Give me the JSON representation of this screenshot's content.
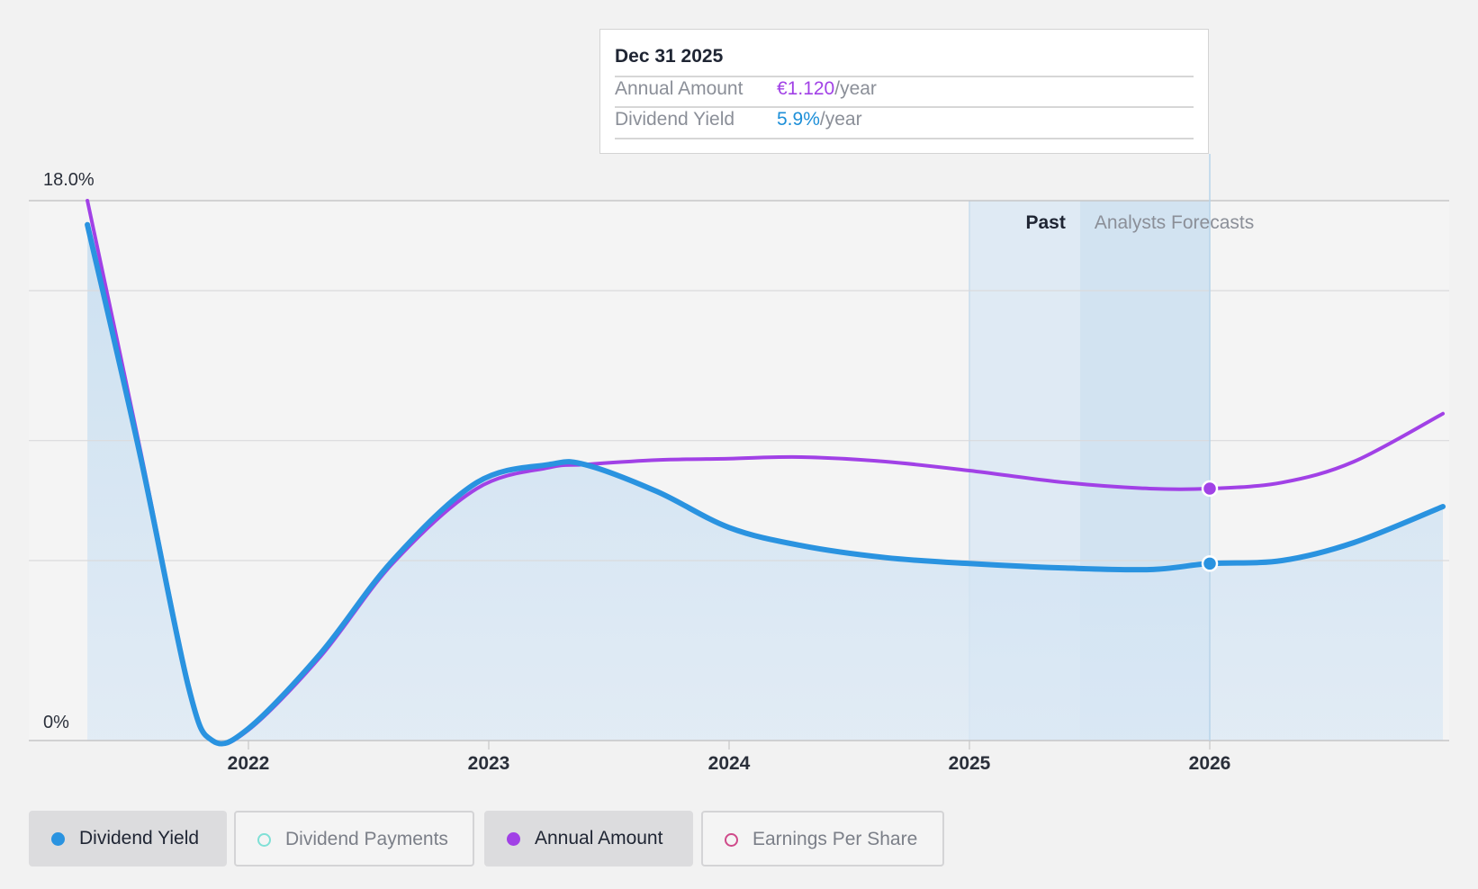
{
  "tooltip": {
    "date": "Dec 31 2025",
    "rows": [
      {
        "label": "Annual Amount",
        "value": "€1.120",
        "unit": "/year",
        "color": "#a141e6"
      },
      {
        "label": "Dividend Yield",
        "value": "5.9%",
        "unit": "/year",
        "color": "#1d8fd8"
      }
    ]
  },
  "regions": {
    "past_label": "Past",
    "forecast_label": "Analysts Forecasts"
  },
  "legend": [
    {
      "label": "Dividend Yield",
      "color": "#2a93e0",
      "active": true,
      "filled": true,
      "icon": "filled-circle"
    },
    {
      "label": "Dividend Payments",
      "color": "#7fe0d6",
      "active": false,
      "filled": false,
      "icon": "hollow-circle"
    },
    {
      "label": "Annual Amount",
      "color": "#a141e6",
      "active": true,
      "filled": true,
      "icon": "filled-circle"
    },
    {
      "label": "Earnings Per Share",
      "color": "#cf4a8a",
      "active": false,
      "filled": false,
      "icon": "hollow-circle"
    }
  ],
  "colors": {
    "yield": "#2a93e0",
    "amount": "#a141e6",
    "area": "#c9e0f2",
    "background": "#f2f2f2"
  },
  "chart_data": {
    "type": "line",
    "title": "",
    "xlabel": "",
    "ylabel": "",
    "ylim": [
      0,
      18
    ],
    "y_tick_labels": [
      "0%",
      "18.0%"
    ],
    "x_ticks": [
      2022,
      2023,
      2024,
      2025,
      2026
    ],
    "x_range": [
      2021.33,
      2026.97
    ],
    "grid": true,
    "past_range": [
      2025.0,
      2025.46
    ],
    "forecast_range": [
      2025.46,
      2026.0
    ],
    "highlight_x": 2026.0,
    "series": [
      {
        "name": "Dividend Yield",
        "color": "#2a93e0",
        "x": [
          2021.33,
          2021.55,
          2021.75,
          2021.85,
          2022.0,
          2022.3,
          2022.6,
          2022.95,
          2023.25,
          2023.4,
          2023.7,
          2024.0,
          2024.3,
          2024.65,
          2025.0,
          2025.4,
          2025.75,
          2026.0,
          2026.3,
          2026.6,
          2026.97
        ],
        "y": [
          17.2,
          9.5,
          1.8,
          0.0,
          0.4,
          2.9,
          6.0,
          8.6,
          9.2,
          9.2,
          8.3,
          7.1,
          6.5,
          6.1,
          5.9,
          5.75,
          5.7,
          5.9,
          6.0,
          6.6,
          7.8
        ]
      },
      {
        "name": "Annual Amount",
        "color": "#a141e6",
        "x": [
          2021.33,
          2021.55,
          2021.75,
          2021.85,
          2022.0,
          2022.3,
          2022.6,
          2022.95,
          2023.25,
          2023.4,
          2023.7,
          2024.0,
          2024.3,
          2024.65,
          2025.0,
          2025.4,
          2025.75,
          2026.0,
          2026.3,
          2026.6,
          2026.97
        ],
        "y": [
          18.0,
          9.7,
          1.9,
          0.0,
          0.35,
          2.8,
          5.9,
          8.4,
          9.1,
          9.2,
          9.35,
          9.4,
          9.45,
          9.3,
          9.0,
          8.6,
          8.4,
          8.4,
          8.6,
          9.3,
          10.9
        ]
      }
    ]
  }
}
